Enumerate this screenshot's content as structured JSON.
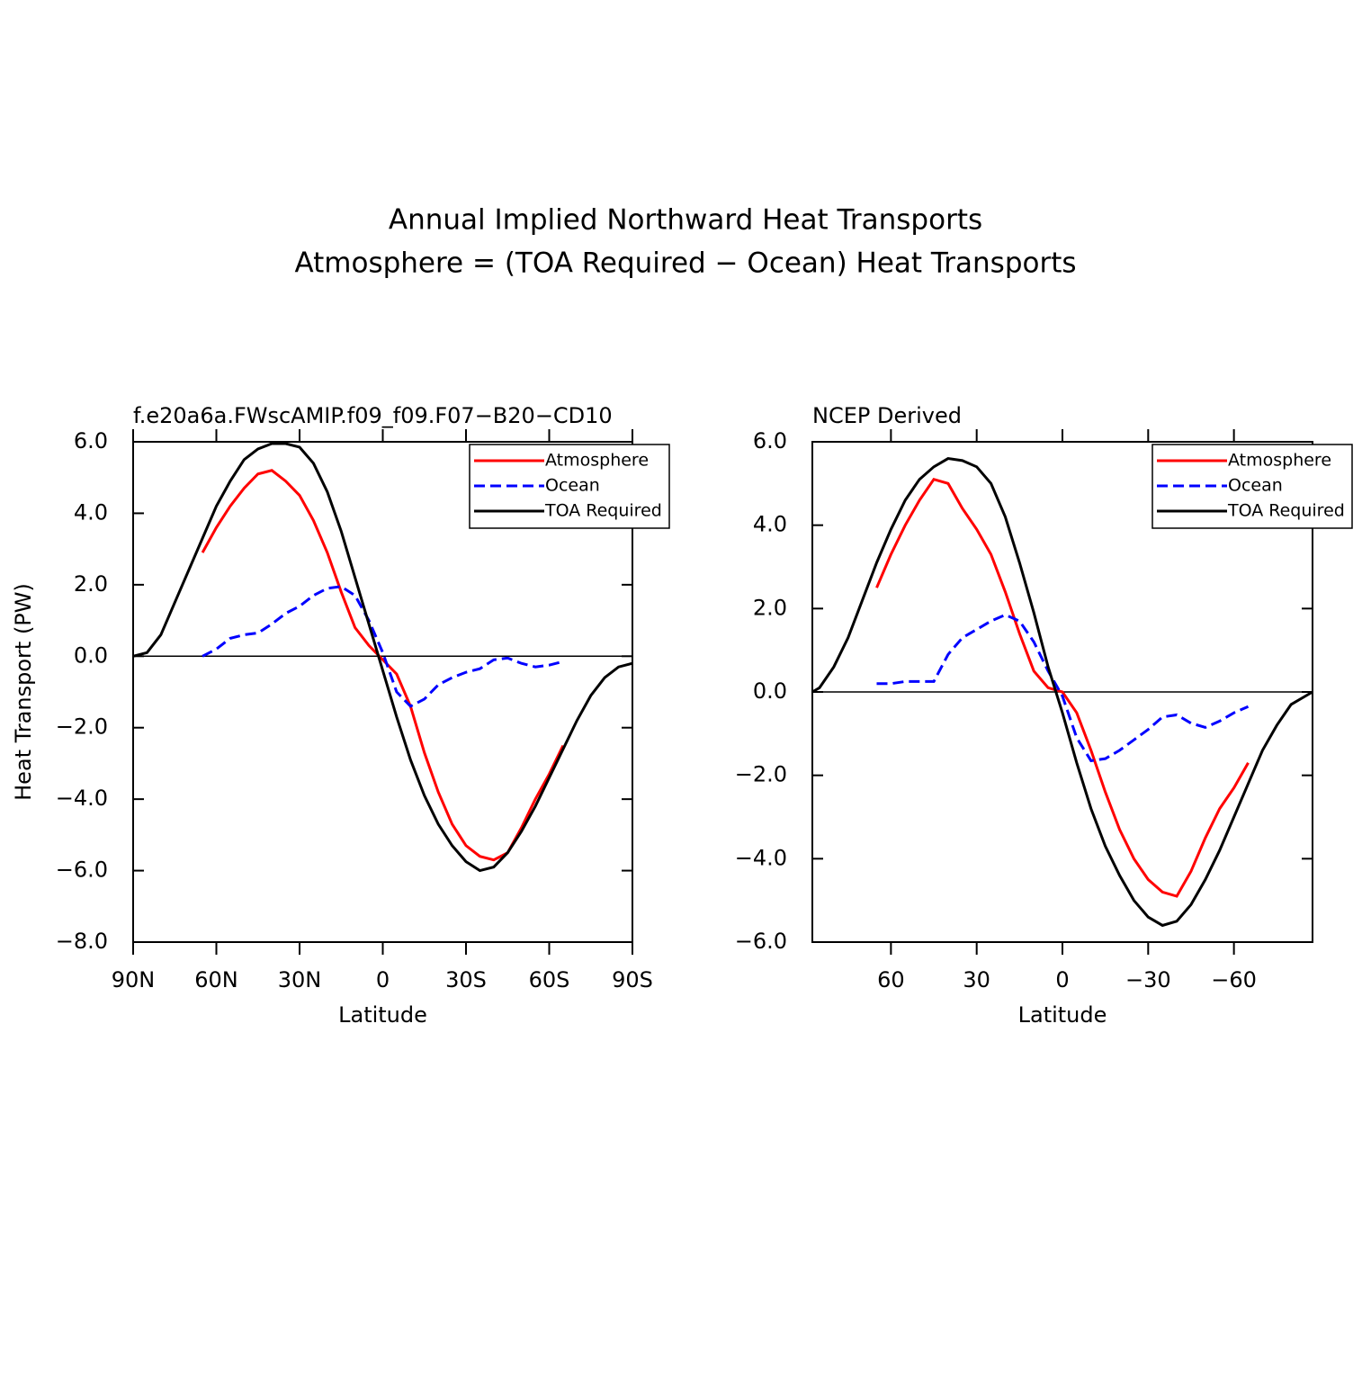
{
  "title": [
    "Annual Implied Northward Heat Transports",
    "Atmosphere = (TOA Required − Ocean) Heat Transports"
  ],
  "chart_data": [
    {
      "type": "line",
      "title": "f.e20a6a.FWscAMIP.f09_f09.F07−B20−CD10",
      "xlabel": "Latitude",
      "ylabel": "Heat Transport (PW)",
      "x": [
        90,
        85,
        80,
        75,
        70,
        65,
        60,
        55,
        50,
        45,
        40,
        35,
        30,
        25,
        20,
        15,
        10,
        5,
        0,
        -5,
        -10,
        -15,
        -20,
        -25,
        -30,
        -35,
        -40,
        -45,
        -50,
        -55,
        -60,
        -65,
        -70,
        -75,
        -80,
        -85,
        -90
      ],
      "series": [
        {
          "name": "Atmosphere",
          "color": "#ff0000",
          "linestyle": "solid",
          "values": [
            null,
            null,
            null,
            null,
            null,
            2.9,
            3.6,
            4.2,
            4.7,
            5.1,
            5.2,
            4.9,
            4.5,
            3.8,
            2.9,
            1.8,
            0.8,
            0.3,
            -0.1,
            -0.5,
            -1.4,
            -2.7,
            -3.8,
            -4.7,
            -5.3,
            -5.6,
            -5.7,
            -5.5,
            -4.8,
            -4.0,
            -3.3,
            -2.5,
            null,
            null,
            null,
            null,
            null
          ]
        },
        {
          "name": "Ocean",
          "color": "#0000ff",
          "linestyle": "dashed",
          "values": [
            null,
            null,
            null,
            null,
            null,
            0.0,
            0.2,
            0.5,
            0.6,
            0.65,
            0.9,
            1.2,
            1.4,
            1.7,
            1.9,
            1.95,
            1.7,
            1.0,
            0.1,
            -1.0,
            -1.4,
            -1.2,
            -0.8,
            -0.6,
            -0.45,
            -0.35,
            -0.1,
            -0.05,
            -0.2,
            -0.3,
            -0.25,
            -0.15,
            null,
            null,
            null,
            null,
            null
          ]
        },
        {
          "name": "TOA Required",
          "color": "#000000",
          "linestyle": "solid",
          "values": [
            0.0,
            0.1,
            0.6,
            1.5,
            2.4,
            3.3,
            4.2,
            4.9,
            5.5,
            5.8,
            5.95,
            5.95,
            5.85,
            5.4,
            4.6,
            3.5,
            2.2,
            0.9,
            -0.4,
            -1.7,
            -2.9,
            -3.9,
            -4.7,
            -5.3,
            -5.75,
            -6.0,
            -5.9,
            -5.5,
            -4.9,
            -4.2,
            -3.4,
            -2.6,
            -1.8,
            -1.1,
            -0.6,
            -0.3,
            -0.2
          ]
        }
      ],
      "xlim": [
        90,
        -90
      ],
      "xticks": [
        {
          "value": 90,
          "label": "90N"
        },
        {
          "value": 60,
          "label": "60N"
        },
        {
          "value": 30,
          "label": "30N"
        },
        0,
        {
          "value": -30,
          "label": "30S"
        },
        {
          "value": -60,
          "label": "60S"
        },
        {
          "value": -90,
          "label": "90S"
        }
      ],
      "ylim": [
        -8,
        6
      ],
      "yticks": [
        {
          "value": -8,
          "label": "−8.0"
        },
        {
          "value": -6,
          "label": "−6.0"
        },
        {
          "value": -4,
          "label": "−4.0"
        },
        {
          "value": -2,
          "label": "−2.0"
        },
        {
          "value": 0,
          "label": "0.0"
        },
        {
          "value": 2,
          "label": "2.0"
        },
        {
          "value": 4,
          "label": "4.0"
        },
        {
          "value": 6,
          "label": "6.0"
        }
      ],
      "grid": false,
      "zero_line": true,
      "legend": "upper-right"
    },
    {
      "type": "line",
      "title": "NCEP Derived",
      "xlabel": "Latitude",
      "x": [
        87.5,
        85,
        80,
        75,
        70,
        65,
        60,
        55,
        50,
        45,
        40,
        35,
        30,
        25,
        20,
        15,
        10,
        5,
        0,
        -5,
        -10,
        -15,
        -20,
        -25,
        -30,
        -35,
        -40,
        -45,
        -50,
        -55,
        -60,
        -65,
        -70,
        -75,
        -80,
        -85,
        -87.5
      ],
      "series": [
        {
          "name": "Atmosphere",
          "color": "#ff0000",
          "linestyle": "solid",
          "values": [
            null,
            null,
            null,
            null,
            null,
            2.5,
            3.3,
            4.0,
            4.6,
            5.1,
            5.0,
            4.4,
            3.9,
            3.3,
            2.4,
            1.4,
            0.5,
            0.1,
            0.0,
            -0.5,
            -1.4,
            -2.4,
            -3.3,
            -4.0,
            -4.5,
            -4.8,
            -4.9,
            -4.3,
            -3.5,
            -2.8,
            -2.3,
            -1.7,
            null,
            null,
            null,
            null,
            null
          ]
        },
        {
          "name": "Ocean",
          "color": "#0000ff",
          "linestyle": "dashed",
          "values": [
            null,
            null,
            null,
            null,
            null,
            0.2,
            0.2,
            0.25,
            0.25,
            0.25,
            0.9,
            1.3,
            1.5,
            1.7,
            1.85,
            1.7,
            1.2,
            0.5,
            -0.1,
            -1.1,
            -1.65,
            -1.6,
            -1.4,
            -1.15,
            -0.9,
            -0.6,
            -0.55,
            -0.75,
            -0.85,
            -0.7,
            -0.5,
            -0.35,
            null,
            null,
            null,
            null,
            null
          ]
        },
        {
          "name": "TOA Required",
          "color": "#000000",
          "linestyle": "solid",
          "values": [
            0.0,
            0.1,
            0.6,
            1.3,
            2.2,
            3.1,
            3.9,
            4.6,
            5.1,
            5.4,
            5.6,
            5.55,
            5.4,
            5.0,
            4.2,
            3.1,
            1.9,
            0.6,
            -0.5,
            -1.7,
            -2.8,
            -3.7,
            -4.4,
            -5.0,
            -5.4,
            -5.6,
            -5.5,
            -5.1,
            -4.5,
            -3.8,
            -3.0,
            -2.2,
            -1.4,
            -0.8,
            -0.3,
            -0.1,
            0.0
          ]
        }
      ],
      "xlim": [
        87.5,
        -87.5
      ],
      "xticks": [
        60,
        30,
        0,
        {
          "value": -30,
          "label": "−30"
        },
        {
          "value": -60,
          "label": "−60"
        }
      ],
      "ylim": [
        -6,
        6
      ],
      "yticks": [
        {
          "value": -6,
          "label": "−6.0"
        },
        {
          "value": -4,
          "label": "−4.0"
        },
        {
          "value": -2,
          "label": "−2.0"
        },
        {
          "value": 0,
          "label": "0.0"
        },
        {
          "value": 2,
          "label": "2.0"
        },
        {
          "value": 4,
          "label": "4.0"
        },
        {
          "value": 6,
          "label": "6.0"
        }
      ],
      "grid": false,
      "zero_line": true,
      "legend": "upper-right"
    }
  ]
}
